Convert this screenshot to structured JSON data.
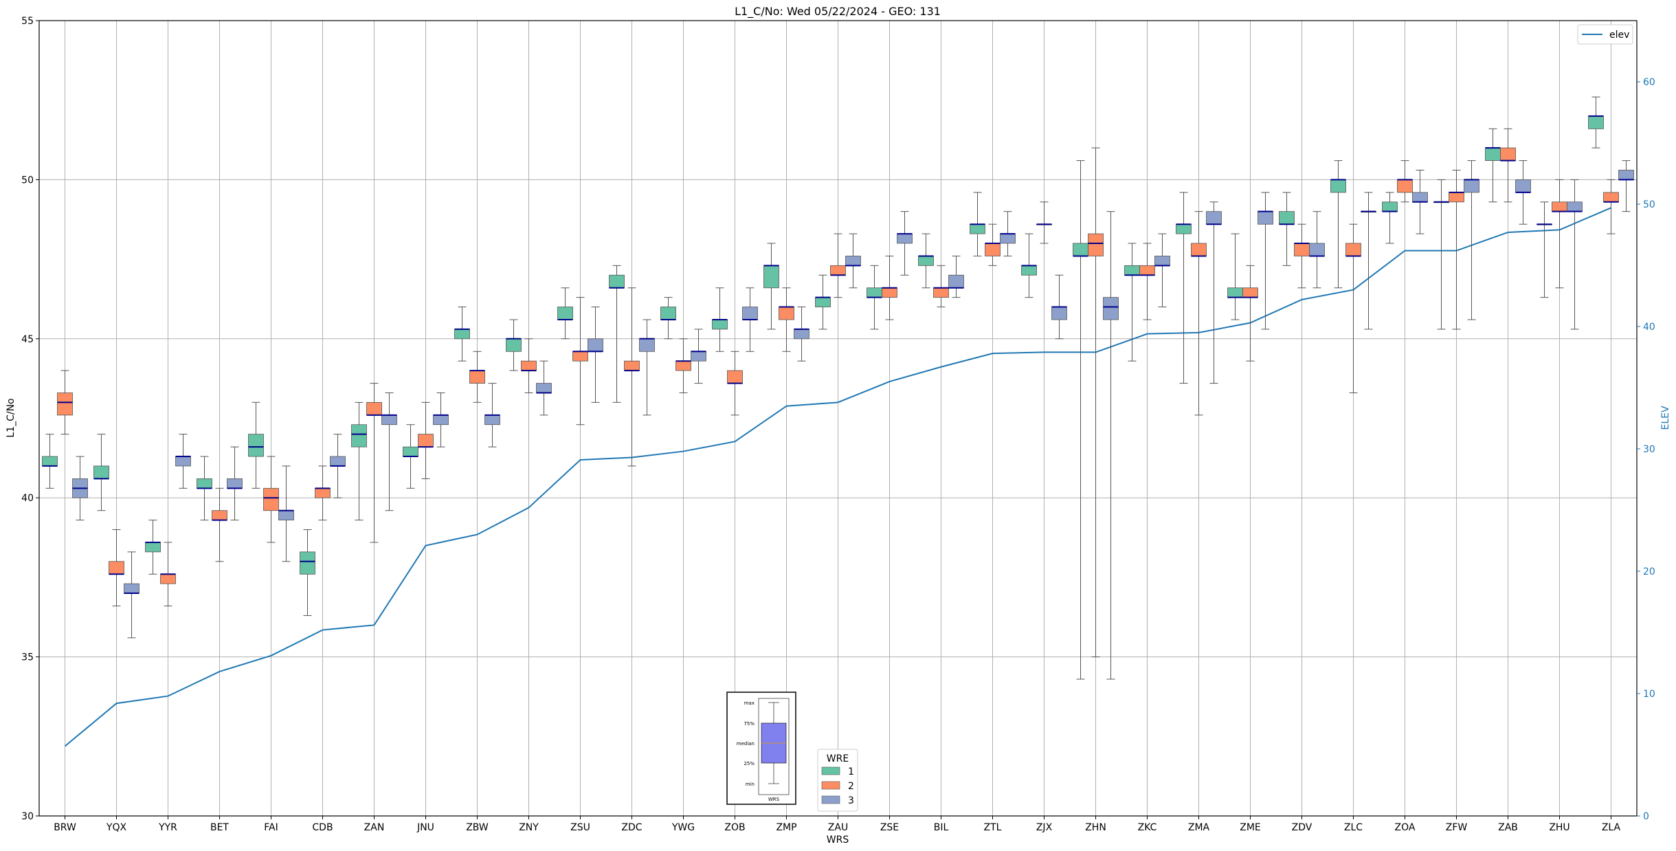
{
  "chart_data": {
    "type": "box",
    "title": "L1_C/No: Wed 05/22/2024 - GEO: 131",
    "xlabel": "WRS",
    "ylabel": "L1_C/No",
    "y2label": "ELEV",
    "ylim": [
      30,
      55
    ],
    "y2lim": [
      0,
      65
    ],
    "yticks": [
      "30",
      "35",
      "40",
      "45",
      "50",
      "55"
    ],
    "y2ticks": [
      "0",
      "10",
      "20",
      "30",
      "40",
      "50",
      "60"
    ],
    "grid": true,
    "colors": {
      "1": "#66c2a5",
      "2": "#fc8d62",
      "3": "#8da0cb",
      "elev": "#1f77b4",
      "median": "#00008b",
      "inset_box": "#8080ee"
    },
    "categories": [
      "BRW",
      "YQX",
      "YYR",
      "BET",
      "FAI",
      "CDB",
      "ZAN",
      "JNU",
      "ZBW",
      "ZNY",
      "ZSU",
      "ZDC",
      "YWG",
      "ZOB",
      "ZMP",
      "ZAU",
      "ZSE",
      "BIL",
      "ZTL",
      "ZJX",
      "ZHN",
      "ZKC",
      "ZMA",
      "ZME",
      "ZDV",
      "ZLC",
      "ZOA",
      "ZFW",
      "ZAB",
      "ZHU",
      "ZLA"
    ],
    "box_legend": {
      "title": "WRE",
      "entries": [
        "1",
        "2",
        "3"
      ]
    },
    "line_legend": {
      "entries": [
        "elev"
      ]
    },
    "inset": {
      "labels": [
        "max",
        "75%",
        "median",
        "25%",
        "min"
      ],
      "xlabel": "WRS"
    },
    "elev": [
      5.7,
      9.2,
      9.8,
      11.8,
      13.1,
      15.2,
      15.6,
      22.1,
      23.0,
      25.2,
      29.1,
      29.3,
      29.8,
      30.6,
      33.5,
      33.8,
      35.5,
      36.7,
      37.8,
      37.9,
      37.9,
      39.4,
      39.5,
      40.3,
      42.2,
      43.0,
      46.2,
      46.2,
      47.7,
      47.9,
      49.7
    ],
    "boxes": [
      {
        "wrs": "BRW",
        "wre": "1",
        "min": 40.3,
        "q1": 41.0,
        "med": 41.0,
        "q3": 41.3,
        "max": 42.0
      },
      {
        "wrs": "BRW",
        "wre": "2",
        "min": 42.0,
        "q1": 42.6,
        "med": 43.0,
        "q3": 43.3,
        "max": 44.0
      },
      {
        "wrs": "BRW",
        "wre": "3",
        "min": 39.3,
        "q1": 40.0,
        "med": 40.3,
        "q3": 40.6,
        "max": 41.3
      },
      {
        "wrs": "YQX",
        "wre": "1",
        "min": 39.6,
        "q1": 40.6,
        "med": 40.6,
        "q3": 41.0,
        "max": 42.0
      },
      {
        "wrs": "YQX",
        "wre": "2",
        "min": 36.6,
        "q1": 37.6,
        "med": 37.6,
        "q3": 38.0,
        "max": 39.0
      },
      {
        "wrs": "YQX",
        "wre": "3",
        "min": 35.6,
        "q1": 37.0,
        "med": 37.0,
        "q3": 37.3,
        "max": 38.3
      },
      {
        "wrs": "YYR",
        "wre": "1",
        "min": 37.6,
        "q1": 38.3,
        "med": 38.6,
        "q3": 38.6,
        "max": 39.3
      },
      {
        "wrs": "YYR",
        "wre": "2",
        "min": 36.6,
        "q1": 37.3,
        "med": 37.6,
        "q3": 37.6,
        "max": 38.6
      },
      {
        "wrs": "YYR",
        "wre": "3",
        "min": 40.3,
        "q1": 41.0,
        "med": 41.3,
        "q3": 41.3,
        "max": 42.0
      },
      {
        "wrs": "BET",
        "wre": "1",
        "min": 39.3,
        "q1": 40.3,
        "med": 40.3,
        "q3": 40.6,
        "max": 41.3
      },
      {
        "wrs": "BET",
        "wre": "2",
        "min": 38.0,
        "q1": 39.3,
        "med": 39.3,
        "q3": 39.6,
        "max": 40.3
      },
      {
        "wrs": "BET",
        "wre": "3",
        "min": 39.3,
        "q1": 40.3,
        "med": 40.3,
        "q3": 40.6,
        "max": 41.6
      },
      {
        "wrs": "FAI",
        "wre": "1",
        "min": 40.3,
        "q1": 41.3,
        "med": 41.6,
        "q3": 42.0,
        "max": 43.0
      },
      {
        "wrs": "FAI",
        "wre": "2",
        "min": 38.6,
        "q1": 39.6,
        "med": 40.0,
        "q3": 40.3,
        "max": 41.3
      },
      {
        "wrs": "FAI",
        "wre": "3",
        "min": 38.0,
        "q1": 39.3,
        "med": 39.6,
        "q3": 39.6,
        "max": 41.0
      },
      {
        "wrs": "CDB",
        "wre": "1",
        "min": 36.3,
        "q1": 37.6,
        "med": 38.0,
        "q3": 38.3,
        "max": 39.0
      },
      {
        "wrs": "CDB",
        "wre": "2",
        "min": 39.3,
        "q1": 40.0,
        "med": 40.3,
        "q3": 40.3,
        "max": 41.0
      },
      {
        "wrs": "CDB",
        "wre": "3",
        "min": 40.0,
        "q1": 41.0,
        "med": 41.0,
        "q3": 41.3,
        "max": 42.0
      },
      {
        "wrs": "ZAN",
        "wre": "1",
        "min": 39.3,
        "q1": 41.6,
        "med": 42.0,
        "q3": 42.3,
        "max": 43.0
      },
      {
        "wrs": "ZAN",
        "wre": "2",
        "min": 38.6,
        "q1": 42.6,
        "med": 42.6,
        "q3": 43.0,
        "max": 43.6
      },
      {
        "wrs": "ZAN",
        "wre": "3",
        "min": 39.6,
        "q1": 42.3,
        "med": 42.6,
        "q3": 42.6,
        "max": 43.3
      },
      {
        "wrs": "JNU",
        "wre": "1",
        "min": 40.3,
        "q1": 41.3,
        "med": 41.3,
        "q3": 41.6,
        "max": 42.3
      },
      {
        "wrs": "JNU",
        "wre": "2",
        "min": 40.6,
        "q1": 41.6,
        "med": 41.6,
        "q3": 42.0,
        "max": 43.0
      },
      {
        "wrs": "JNU",
        "wre": "3",
        "min": 41.6,
        "q1": 42.3,
        "med": 42.6,
        "q3": 42.6,
        "max": 43.3
      },
      {
        "wrs": "ZBW",
        "wre": "1",
        "min": 44.3,
        "q1": 45.0,
        "med": 45.3,
        "q3": 45.3,
        "max": 46.0
      },
      {
        "wrs": "ZBW",
        "wre": "2",
        "min": 43.0,
        "q1": 43.6,
        "med": 44.0,
        "q3": 44.0,
        "max": 44.6
      },
      {
        "wrs": "ZBW",
        "wre": "3",
        "min": 41.6,
        "q1": 42.3,
        "med": 42.6,
        "q3": 42.6,
        "max": 43.6
      },
      {
        "wrs": "ZNY",
        "wre": "1",
        "min": 44.0,
        "q1": 44.6,
        "med": 45.0,
        "q3": 45.0,
        "max": 45.6
      },
      {
        "wrs": "ZNY",
        "wre": "2",
        "min": 43.3,
        "q1": 44.0,
        "med": 44.0,
        "q3": 44.3,
        "max": 45.0
      },
      {
        "wrs": "ZNY",
        "wre": "3",
        "min": 42.6,
        "q1": 43.3,
        "med": 43.3,
        "q3": 43.6,
        "max": 44.3
      },
      {
        "wrs": "ZSU",
        "wre": "1",
        "min": 45.0,
        "q1": 45.6,
        "med": 45.6,
        "q3": 46.0,
        "max": 46.6
      },
      {
        "wrs": "ZSU",
        "wre": "2",
        "min": 42.3,
        "q1": 44.3,
        "med": 44.6,
        "q3": 44.6,
        "max": 46.3
      },
      {
        "wrs": "ZSU",
        "wre": "3",
        "min": 43.0,
        "q1": 44.6,
        "med": 44.6,
        "q3": 45.0,
        "max": 46.0
      },
      {
        "wrs": "ZDC",
        "wre": "1",
        "min": 43.0,
        "q1": 46.6,
        "med": 46.6,
        "q3": 47.0,
        "max": 47.3
      },
      {
        "wrs": "ZDC",
        "wre": "2",
        "min": 41.0,
        "q1": 44.0,
        "med": 44.0,
        "q3": 44.3,
        "max": 46.6
      },
      {
        "wrs": "ZDC",
        "wre": "3",
        "min": 42.6,
        "q1": 44.6,
        "med": 45.0,
        "q3": 45.0,
        "max": 45.6
      },
      {
        "wrs": "YWG",
        "wre": "1",
        "min": 45.0,
        "q1": 45.6,
        "med": 45.6,
        "q3": 46.0,
        "max": 46.3
      },
      {
        "wrs": "YWG",
        "wre": "2",
        "min": 43.3,
        "q1": 44.0,
        "med": 44.3,
        "q3": 44.3,
        "max": 45.0
      },
      {
        "wrs": "YWG",
        "wre": "3",
        "min": 43.6,
        "q1": 44.3,
        "med": 44.6,
        "q3": 44.6,
        "max": 45.3
      },
      {
        "wrs": "ZOB",
        "wre": "1",
        "min": 44.6,
        "q1": 45.3,
        "med": 45.6,
        "q3": 45.6,
        "max": 46.6
      },
      {
        "wrs": "ZOB",
        "wre": "2",
        "min": 42.6,
        "q1": 43.6,
        "med": 43.6,
        "q3": 44.0,
        "max": 44.6
      },
      {
        "wrs": "ZOB",
        "wre": "3",
        "min": 44.6,
        "q1": 45.6,
        "med": 45.6,
        "q3": 46.0,
        "max": 46.6
      },
      {
        "wrs": "ZMP",
        "wre": "1",
        "min": 45.3,
        "q1": 46.6,
        "med": 47.3,
        "q3": 47.3,
        "max": 48.0
      },
      {
        "wrs": "ZMP",
        "wre": "2",
        "min": 44.6,
        "q1": 45.6,
        "med": 46.0,
        "q3": 46.0,
        "max": 46.6
      },
      {
        "wrs": "ZMP",
        "wre": "3",
        "min": 44.3,
        "q1": 45.0,
        "med": 45.3,
        "q3": 45.3,
        "max": 46.0
      },
      {
        "wrs": "ZAU",
        "wre": "1",
        "min": 45.3,
        "q1": 46.0,
        "med": 46.3,
        "q3": 46.3,
        "max": 47.0
      },
      {
        "wrs": "ZAU",
        "wre": "2",
        "min": 46.3,
        "q1": 47.0,
        "med": 47.0,
        "q3": 47.3,
        "max": 48.3
      },
      {
        "wrs": "ZAU",
        "wre": "3",
        "min": 46.6,
        "q1": 47.3,
        "med": 47.3,
        "q3": 47.6,
        "max": 48.3
      },
      {
        "wrs": "ZSE",
        "wre": "1",
        "min": 45.3,
        "q1": 46.3,
        "med": 46.3,
        "q3": 46.6,
        "max": 47.3
      },
      {
        "wrs": "ZSE",
        "wre": "2",
        "min": 45.6,
        "q1": 46.3,
        "med": 46.6,
        "q3": 46.6,
        "max": 47.6
      },
      {
        "wrs": "ZSE",
        "wre": "3",
        "min": 47.0,
        "q1": 48.0,
        "med": 48.3,
        "q3": 48.3,
        "max": 49.0
      },
      {
        "wrs": "BIL",
        "wre": "1",
        "min": 46.6,
        "q1": 47.3,
        "med": 47.6,
        "q3": 47.6,
        "max": 48.3
      },
      {
        "wrs": "BIL",
        "wre": "2",
        "min": 46.0,
        "q1": 46.3,
        "med": 46.6,
        "q3": 46.6,
        "max": 47.3
      },
      {
        "wrs": "BIL",
        "wre": "3",
        "min": 46.3,
        "q1": 46.6,
        "med": 46.6,
        "q3": 47.0,
        "max": 47.6
      },
      {
        "wrs": "ZTL",
        "wre": "1",
        "min": 47.6,
        "q1": 48.3,
        "med": 48.6,
        "q3": 48.6,
        "max": 49.6
      },
      {
        "wrs": "ZTL",
        "wre": "2",
        "min": 47.3,
        "q1": 47.6,
        "med": 48.0,
        "q3": 48.0,
        "max": 48.6
      },
      {
        "wrs": "ZTL",
        "wre": "3",
        "min": 47.6,
        "q1": 48.0,
        "med": 48.3,
        "q3": 48.3,
        "max": 49.0
      },
      {
        "wrs": "ZJX",
        "wre": "1",
        "min": 46.3,
        "q1": 47.0,
        "med": 47.3,
        "q3": 47.3,
        "max": 48.3
      },
      {
        "wrs": "ZJX",
        "wre": "2",
        "min": 48.0,
        "q1": 48.6,
        "med": 48.6,
        "q3": 48.6,
        "max": 49.3
      },
      {
        "wrs": "ZJX",
        "wre": "3",
        "min": 45.0,
        "q1": 45.6,
        "med": 46.0,
        "q3": 46.0,
        "max": 47.0
      },
      {
        "wrs": "ZHN",
        "wre": "1",
        "min": 34.3,
        "q1": 47.6,
        "med": 47.6,
        "q3": 48.0,
        "max": 50.6
      },
      {
        "wrs": "ZHN",
        "wre": "2",
        "min": 35.0,
        "q1": 47.6,
        "med": 48.0,
        "q3": 48.3,
        "max": 51.0
      },
      {
        "wrs": "ZHN",
        "wre": "3",
        "min": 34.3,
        "q1": 45.6,
        "med": 46.0,
        "q3": 46.3,
        "max": 49.0
      },
      {
        "wrs": "ZKC",
        "wre": "1",
        "min": 44.3,
        "q1": 47.0,
        "med": 47.0,
        "q3": 47.3,
        "max": 48.0
      },
      {
        "wrs": "ZKC",
        "wre": "2",
        "min": 45.6,
        "q1": 47.0,
        "med": 47.0,
        "q3": 47.3,
        "max": 48.0
      },
      {
        "wrs": "ZKC",
        "wre": "3",
        "min": 46.0,
        "q1": 47.3,
        "med": 47.3,
        "q3": 47.6,
        "max": 48.3
      },
      {
        "wrs": "ZMA",
        "wre": "1",
        "min": 43.6,
        "q1": 48.3,
        "med": 48.6,
        "q3": 48.6,
        "max": 49.6
      },
      {
        "wrs": "ZMA",
        "wre": "2",
        "min": 42.6,
        "q1": 47.6,
        "med": 47.6,
        "q3": 48.0,
        "max": 49.0
      },
      {
        "wrs": "ZMA",
        "wre": "3",
        "min": 43.6,
        "q1": 48.6,
        "med": 48.6,
        "q3": 49.0,
        "max": 49.3
      },
      {
        "wrs": "ZME",
        "wre": "1",
        "min": 45.6,
        "q1": 46.3,
        "med": 46.3,
        "q3": 46.6,
        "max": 48.3
      },
      {
        "wrs": "ZME",
        "wre": "2",
        "min": 44.3,
        "q1": 46.3,
        "med": 46.3,
        "q3": 46.6,
        "max": 47.3
      },
      {
        "wrs": "ZME",
        "wre": "3",
        "min": 45.3,
        "q1": 48.6,
        "med": 49.0,
        "q3": 49.0,
        "max": 49.6
      },
      {
        "wrs": "ZDV",
        "wre": "1",
        "min": 47.3,
        "q1": 48.6,
        "med": 48.6,
        "q3": 49.0,
        "max": 49.6
      },
      {
        "wrs": "ZDV",
        "wre": "2",
        "min": 46.6,
        "q1": 47.6,
        "med": 48.0,
        "q3": 48.0,
        "max": 48.6
      },
      {
        "wrs": "ZDV",
        "wre": "3",
        "min": 46.6,
        "q1": 47.6,
        "med": 47.6,
        "q3": 48.0,
        "max": 49.0
      },
      {
        "wrs": "ZLC",
        "wre": "1",
        "min": 46.6,
        "q1": 49.6,
        "med": 50.0,
        "q3": 50.0,
        "max": 50.6
      },
      {
        "wrs": "ZLC",
        "wre": "2",
        "min": 43.3,
        "q1": 47.6,
        "med": 47.6,
        "q3": 48.0,
        "max": 48.6
      },
      {
        "wrs": "ZLC",
        "wre": "3",
        "min": 45.3,
        "q1": 49.0,
        "med": 49.0,
        "q3": 49.0,
        "max": 49.6
      },
      {
        "wrs": "ZOA",
        "wre": "1",
        "min": 48.0,
        "q1": 49.0,
        "med": 49.0,
        "q3": 49.3,
        "max": 49.6
      },
      {
        "wrs": "ZOA",
        "wre": "2",
        "min": 49.3,
        "q1": 49.6,
        "med": 50.0,
        "q3": 50.0,
        "max": 50.6
      },
      {
        "wrs": "ZOA",
        "wre": "3",
        "min": 48.3,
        "q1": 49.3,
        "med": 49.3,
        "q3": 49.6,
        "max": 50.3
      },
      {
        "wrs": "ZFW",
        "wre": "1",
        "min": 45.3,
        "q1": 49.3,
        "med": 49.3,
        "q3": 49.3,
        "max": 50.0
      },
      {
        "wrs": "ZFW",
        "wre": "2",
        "min": 45.3,
        "q1": 49.3,
        "med": 49.6,
        "q3": 49.6,
        "max": 50.3
      },
      {
        "wrs": "ZFW",
        "wre": "3",
        "min": 45.6,
        "q1": 49.6,
        "med": 50.0,
        "q3": 50.0,
        "max": 50.6
      },
      {
        "wrs": "ZAB",
        "wre": "1",
        "min": 49.3,
        "q1": 50.6,
        "med": 51.0,
        "q3": 51.0,
        "max": 51.6
      },
      {
        "wrs": "ZAB",
        "wre": "2",
        "min": 49.3,
        "q1": 50.6,
        "med": 50.6,
        "q3": 51.0,
        "max": 51.6
      },
      {
        "wrs": "ZAB",
        "wre": "3",
        "min": 48.6,
        "q1": 49.6,
        "med": 49.6,
        "q3": 50.0,
        "max": 50.6
      },
      {
        "wrs": "ZHU",
        "wre": "1",
        "min": 46.3,
        "q1": 48.6,
        "med": 48.6,
        "q3": 48.6,
        "max": 49.3
      },
      {
        "wrs": "ZHU",
        "wre": "2",
        "min": 46.6,
        "q1": 49.0,
        "med": 49.0,
        "q3": 49.3,
        "max": 50.0
      },
      {
        "wrs": "ZHU",
        "wre": "3",
        "min": 45.3,
        "q1": 49.0,
        "med": 49.0,
        "q3": 49.3,
        "max": 50.0
      },
      {
        "wrs": "ZLA",
        "wre": "1",
        "min": 51.0,
        "q1": 51.6,
        "med": 52.0,
        "q3": 52.0,
        "max": 52.6
      },
      {
        "wrs": "ZLA",
        "wre": "2",
        "min": 48.3,
        "q1": 49.3,
        "med": 49.3,
        "q3": 49.6,
        "max": 50.0
      },
      {
        "wrs": "ZLA",
        "wre": "3",
        "min": 49.0,
        "q1": 50.0,
        "med": 50.0,
        "q3": 50.3,
        "max": 50.6
      }
    ]
  }
}
